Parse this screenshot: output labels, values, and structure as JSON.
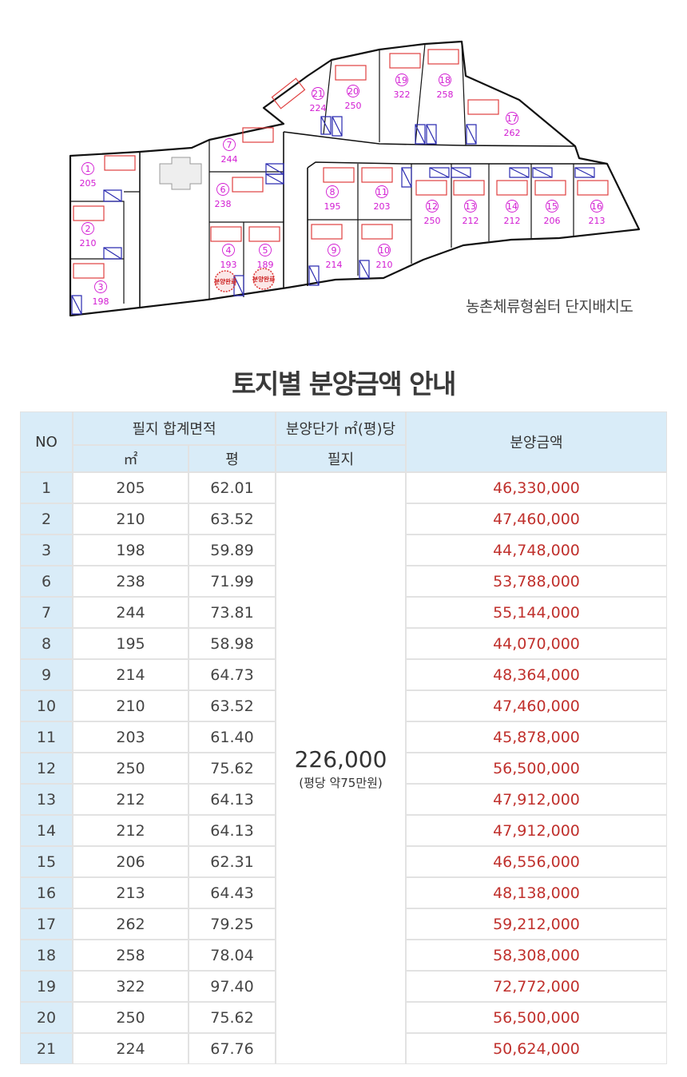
{
  "map": {
    "caption": "농촌체류형쉼터 단지배치도",
    "lots": [
      {
        "no": "1",
        "area": "205"
      },
      {
        "no": "2",
        "area": "210"
      },
      {
        "no": "3",
        "area": "198"
      },
      {
        "no": "4",
        "area": "193"
      },
      {
        "no": "5",
        "area": "189"
      },
      {
        "no": "6",
        "area": "238"
      },
      {
        "no": "7",
        "area": "244"
      },
      {
        "no": "8",
        "area": "195"
      },
      {
        "no": "9",
        "area": "214"
      },
      {
        "no": "10",
        "area": "210"
      },
      {
        "no": "11",
        "area": "203"
      },
      {
        "no": "12",
        "area": "250"
      },
      {
        "no": "13",
        "area": "212"
      },
      {
        "no": "14",
        "area": "212"
      },
      {
        "no": "15",
        "area": "206"
      },
      {
        "no": "16",
        "area": "213"
      },
      {
        "no": "17",
        "area": "262"
      },
      {
        "no": "18",
        "area": "258"
      },
      {
        "no": "19",
        "area": "322"
      },
      {
        "no": "20",
        "area": "250"
      },
      {
        "no": "21",
        "area": "224"
      }
    ],
    "sold_stamp_label": "분양완료",
    "sold_lots": [
      "4",
      "5"
    ]
  },
  "title": "토지별 분양금액 안내",
  "table": {
    "headers": {
      "no": "NO",
      "area_group": "필지 합계면적",
      "unit_price_group": "분양단가 ㎡(평)당",
      "amount": "분양금액",
      "sqm": "㎡",
      "pyeong": "평",
      "parcel": "필지"
    },
    "unit_price": "226,000",
    "unit_price_note": "(평당 약75만원)",
    "rows": [
      {
        "no": "1",
        "sqm": "205",
        "pyeong": "62.01",
        "amount": "46,330,000"
      },
      {
        "no": "2",
        "sqm": "210",
        "pyeong": "63.52",
        "amount": "47,460,000"
      },
      {
        "no": "3",
        "sqm": "198",
        "pyeong": "59.89",
        "amount": "44,748,000"
      },
      {
        "no": "6",
        "sqm": "238",
        "pyeong": "71.99",
        "amount": "53,788,000"
      },
      {
        "no": "7",
        "sqm": "244",
        "pyeong": "73.81",
        "amount": "55,144,000"
      },
      {
        "no": "8",
        "sqm": "195",
        "pyeong": "58.98",
        "amount": "44,070,000"
      },
      {
        "no": "9",
        "sqm": "214",
        "pyeong": "64.73",
        "amount": "48,364,000"
      },
      {
        "no": "10",
        "sqm": "210",
        "pyeong": "63.52",
        "amount": "47,460,000"
      },
      {
        "no": "11",
        "sqm": "203",
        "pyeong": "61.40",
        "amount": "45,878,000"
      },
      {
        "no": "12",
        "sqm": "250",
        "pyeong": "75.62",
        "amount": "56,500,000"
      },
      {
        "no": "13",
        "sqm": "212",
        "pyeong": "64.13",
        "amount": "47,912,000"
      },
      {
        "no": "14",
        "sqm": "212",
        "pyeong": "64.13",
        "amount": "47,912,000"
      },
      {
        "no": "15",
        "sqm": "206",
        "pyeong": "62.31",
        "amount": "46,556,000"
      },
      {
        "no": "16",
        "sqm": "213",
        "pyeong": "64.43",
        "amount": "48,138,000"
      },
      {
        "no": "17",
        "sqm": "262",
        "pyeong": "79.25",
        "amount": "59,212,000"
      },
      {
        "no": "18",
        "sqm": "258",
        "pyeong": "78.04",
        "amount": "58,308,000"
      },
      {
        "no": "19",
        "sqm": "322",
        "pyeong": "97.40",
        "amount": "72,772,000"
      },
      {
        "no": "20",
        "sqm": "250",
        "pyeong": "75.62",
        "amount": "56,500,000"
      },
      {
        "no": "21",
        "sqm": "224",
        "pyeong": "67.76",
        "amount": "50,624,000"
      }
    ]
  },
  "colors": {
    "header_bg": "#d9ecf8",
    "amount_text": "#c0302c",
    "lot_label": "#d21bd2",
    "house_outline": "#e04040",
    "parking_outline": "#2a2ab0"
  }
}
